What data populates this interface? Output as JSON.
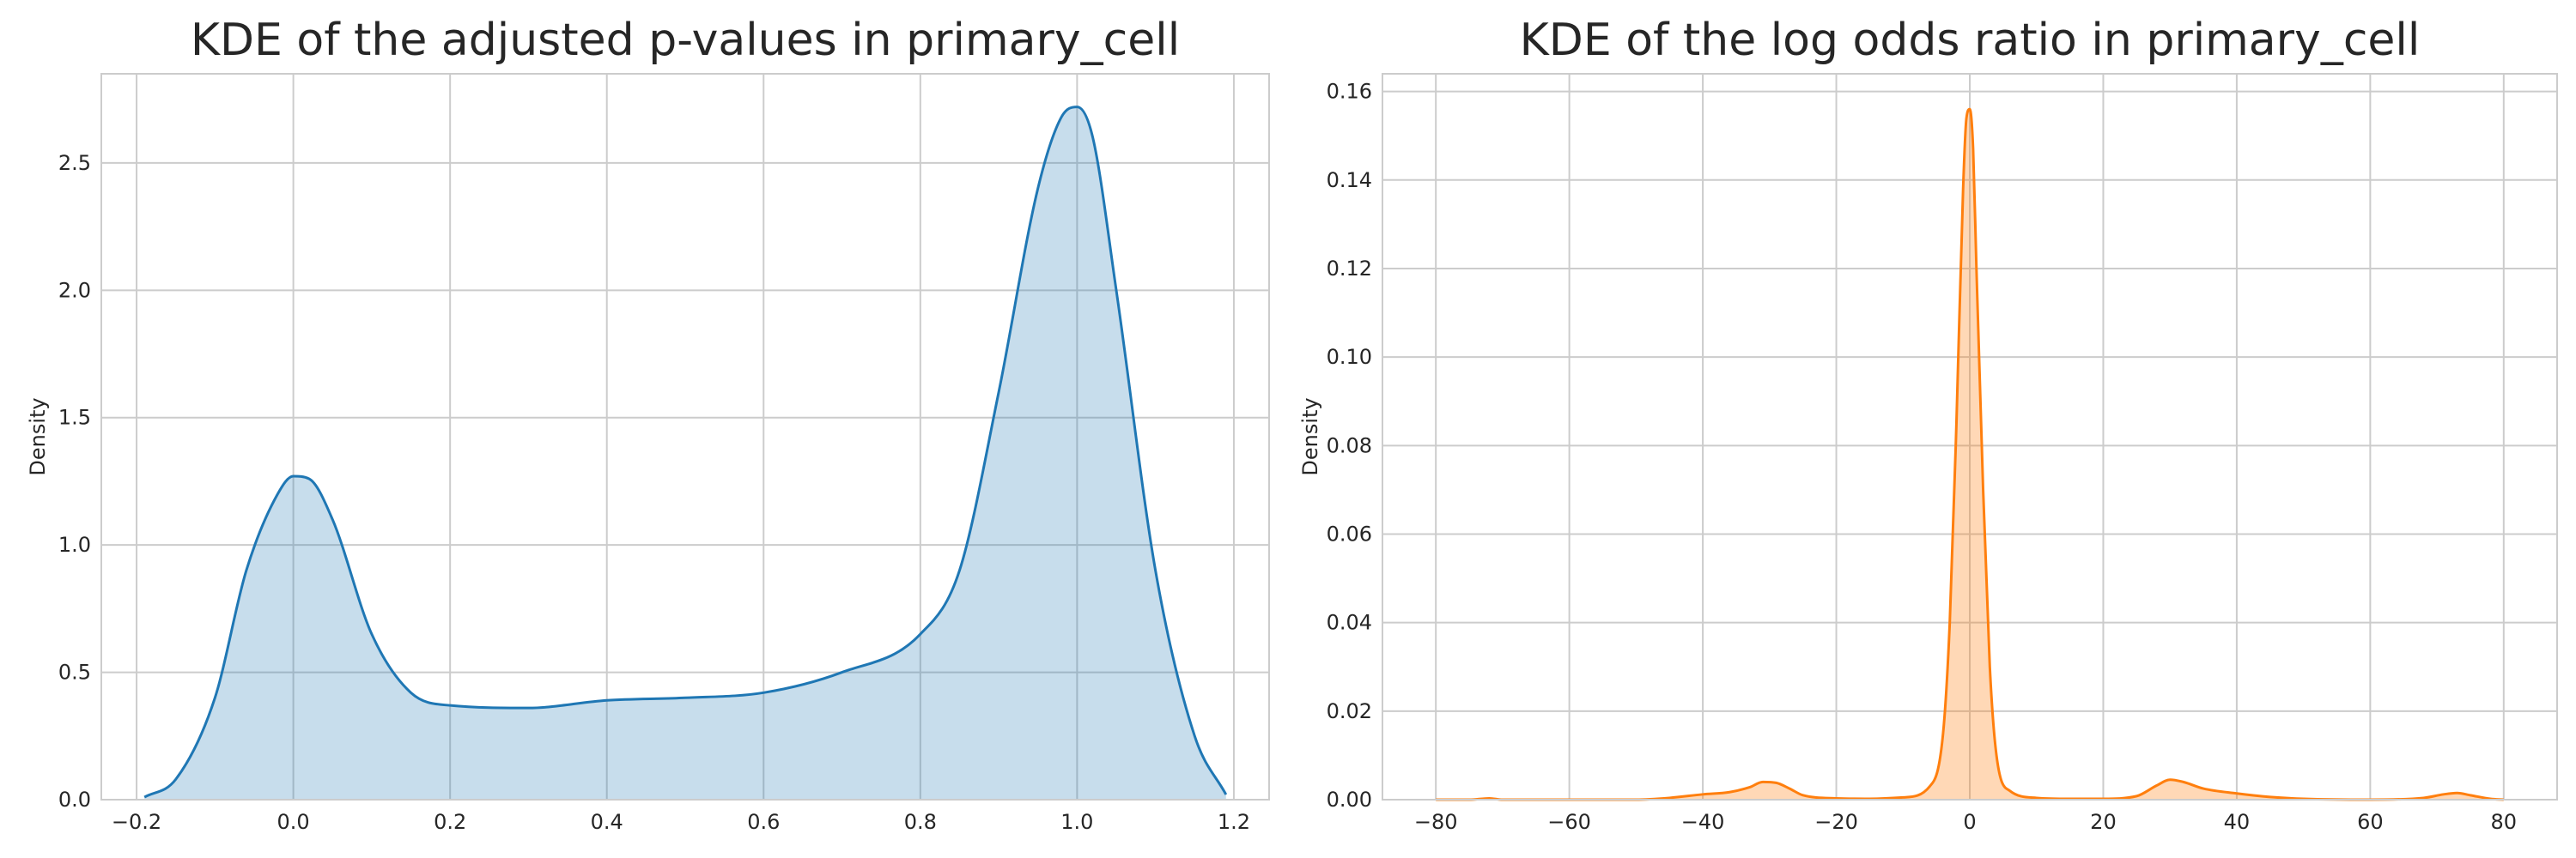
{
  "chart_data": [
    {
      "type": "area",
      "title": "KDE of the adjusted p-values in primary_cell",
      "xlabel": "",
      "ylabel": "Density",
      "xlim": [
        -0.245,
        1.245
      ],
      "ylim": [
        0.0,
        2.85
      ],
      "xticks": [
        -0.2,
        0.0,
        0.2,
        0.4,
        0.6,
        0.8,
        1.0,
        1.2
      ],
      "xtick_labels": [
        "−0.2",
        "0.0",
        "0.2",
        "0.4",
        "0.6",
        "0.8",
        "1.0",
        "1.2"
      ],
      "yticks": [
        0.0,
        0.5,
        1.0,
        1.5,
        2.0,
        2.5
      ],
      "ytick_labels": [
        "0.0",
        "0.5",
        "1.0",
        "1.5",
        "2.0",
        "2.5"
      ],
      "grid": true,
      "legend": "none",
      "colors": {
        "line": "#1f77b4",
        "fill": "#1f77b4"
      },
      "fill_opacity": 0.25,
      "series": [
        {
          "x": [
            -0.19,
            -0.15,
            -0.1,
            -0.06,
            -0.02,
            0.0,
            0.02,
            0.05,
            0.1,
            0.15,
            0.2,
            0.3,
            0.4,
            0.5,
            0.6,
            0.7,
            0.8,
            0.85,
            0.9,
            0.95,
            0.98,
            1.0,
            1.02,
            1.05,
            1.1,
            1.15,
            1.19
          ],
          "y": [
            0.01,
            0.08,
            0.4,
            0.9,
            1.2,
            1.27,
            1.26,
            1.1,
            0.65,
            0.42,
            0.37,
            0.36,
            0.39,
            0.4,
            0.42,
            0.5,
            0.65,
            0.9,
            1.6,
            2.4,
            2.68,
            2.72,
            2.6,
            2.0,
            0.9,
            0.25,
            0.02
          ]
        }
      ]
    },
    {
      "type": "area",
      "title": "KDE of the log odds ratio in primary_cell",
      "xlabel": "",
      "ylabel": "Density",
      "xlim": [
        -88,
        88
      ],
      "ylim": [
        0.0,
        0.164
      ],
      "xticks": [
        -80,
        -60,
        -40,
        -20,
        0,
        20,
        40,
        60,
        80
      ],
      "xtick_labels": [
        "−80",
        "−60",
        "−40",
        "−20",
        "0",
        "20",
        "40",
        "60",
        "80"
      ],
      "yticks": [
        0.0,
        0.02,
        0.04,
        0.06,
        0.08,
        0.1,
        0.12,
        0.14,
        0.16
      ],
      "ytick_labels": [
        "0.00",
        "0.02",
        "0.04",
        "0.06",
        "0.08",
        "0.10",
        "0.12",
        "0.14",
        "0.16"
      ],
      "grid": true,
      "legend": "none",
      "colors": {
        "line": "#ff7f0e",
        "fill": "#ff7f0e"
      },
      "fill_opacity": 0.3,
      "series": [
        {
          "x": [
            -80,
            -75,
            -72,
            -70,
            -60,
            -50,
            -45,
            -40,
            -36,
            -33,
            -31,
            -29,
            -27,
            -25,
            -20,
            -15,
            -10,
            -6,
            -4,
            -3,
            -2,
            -1,
            -0.5,
            0,
            0.5,
            1,
            2,
            3,
            4,
            6,
            10,
            15,
            20,
            25,
            28,
            30,
            32,
            35,
            40,
            45,
            50,
            60,
            68,
            71,
            73,
            75,
            78,
            80
          ],
          "y": [
            0.0,
            0.0,
            0.0003,
            0.0,
            0.0,
            0.0,
            0.0004,
            0.0012,
            0.0017,
            0.0028,
            0.004,
            0.0038,
            0.0025,
            0.001,
            0.0003,
            0.0002,
            0.0005,
            0.003,
            0.015,
            0.04,
            0.085,
            0.138,
            0.154,
            0.156,
            0.147,
            0.12,
            0.07,
            0.03,
            0.01,
            0.002,
            0.0004,
            0.0002,
            0.0002,
            0.0008,
            0.0032,
            0.0045,
            0.004,
            0.0025,
            0.0014,
            0.0006,
            0.0002,
            0.0,
            0.0004,
            0.0012,
            0.0015,
            0.001,
            0.0002,
            0.0
          ]
        }
      ]
    }
  ]
}
